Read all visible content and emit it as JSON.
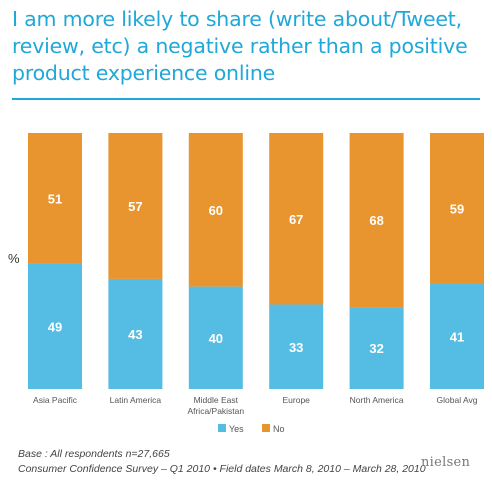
{
  "title": "I am more likely to share (write about/Tweet, review, etc) a negative rather than a positive product experience online",
  "y_unit_label": "%",
  "chart_data": {
    "type": "bar",
    "stacked": true,
    "categories": [
      "Asia Pacific",
      "Latin America",
      "Middle East Africa/Pakistan",
      "Europe",
      "North America",
      "Global Avg"
    ],
    "category_lines": [
      [
        "Asia Pacific"
      ],
      [
        "Latin America"
      ],
      [
        "Middle East",
        "Africa/Pakistan"
      ],
      [
        "Europe"
      ],
      [
        "North America"
      ],
      [
        "Global Avg"
      ]
    ],
    "series": [
      {
        "name": "Yes",
        "color": "#55bde4",
        "values": [
          49,
          43,
          40,
          33,
          32,
          41
        ]
      },
      {
        "name": "No",
        "color": "#e9952f",
        "values": [
          51,
          57,
          60,
          67,
          68,
          59
        ]
      }
    ],
    "ylim": [
      0,
      100
    ],
    "ylabel": "%",
    "legend": "bottom-center",
    "grid": false
  },
  "footer": {
    "base": "Base : All respondents n=27,665",
    "source": "Consumer Confidence Survey – Q1 2010 • Field dates March 8, 2010 – March 28, 2010"
  },
  "logo_text": "nielsen",
  "colors": {
    "title": "#1fa8d8",
    "yes": "#55bde4",
    "no": "#e9952f"
  }
}
